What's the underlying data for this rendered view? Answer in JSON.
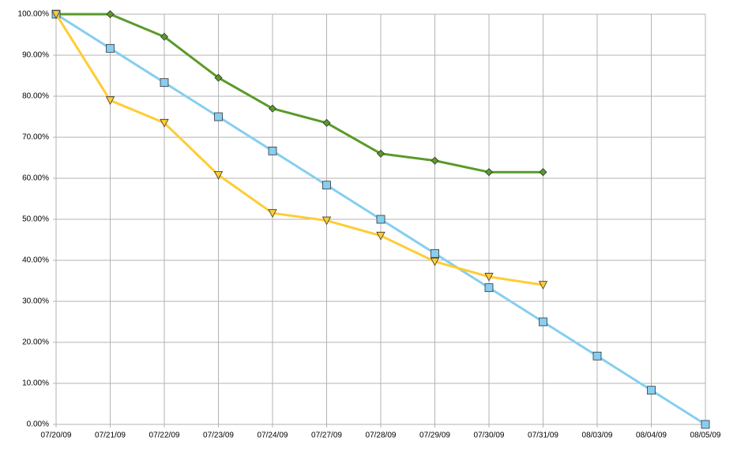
{
  "chart_data": {
    "type": "line",
    "categories": [
      "07/20/09",
      "07/21/09",
      "07/22/09",
      "07/23/09",
      "07/24/09",
      "07/27/09",
      "07/28/09",
      "07/29/09",
      "07/30/09",
      "07/31/09",
      "08/03/09",
      "08/04/09",
      "08/05/09"
    ],
    "series": [
      {
        "color": "#5a9a2a",
        "marker": "diamond",
        "values": [
          100,
          100,
          94.5,
          84.5,
          77,
          73.5,
          66,
          64.3,
          61.5,
          61.5,
          null,
          null,
          null
        ]
      },
      {
        "color": "#87cef0",
        "marker": "square",
        "values": [
          100,
          91.67,
          83.33,
          75,
          66.67,
          58.33,
          50,
          41.67,
          33.33,
          25,
          16.67,
          8.33,
          0
        ]
      },
      {
        "color": "#ffcc33",
        "marker": "triangle-down",
        "values": [
          100,
          79,
          73.5,
          60.8,
          51.5,
          49.7,
          46,
          39.7,
          36,
          34,
          null,
          null,
          null
        ]
      }
    ],
    "ylim": [
      0,
      100
    ],
    "yticks": [
      {
        "value": 0,
        "label": "0.00%"
      },
      {
        "value": 10,
        "label": "10.00%"
      },
      {
        "value": 20,
        "label": "20.00%"
      },
      {
        "value": 30,
        "label": "30.00%"
      },
      {
        "value": 40,
        "label": "40.00%"
      },
      {
        "value": 50,
        "label": "50.00%"
      },
      {
        "value": 60,
        "label": "60.00%"
      },
      {
        "value": 70,
        "label": "70.00%"
      },
      {
        "value": 80,
        "label": "80.00%"
      },
      {
        "value": 90,
        "label": "90.00%"
      },
      {
        "value": 100,
        "label": "100.00%"
      }
    ],
    "grid": true
  }
}
